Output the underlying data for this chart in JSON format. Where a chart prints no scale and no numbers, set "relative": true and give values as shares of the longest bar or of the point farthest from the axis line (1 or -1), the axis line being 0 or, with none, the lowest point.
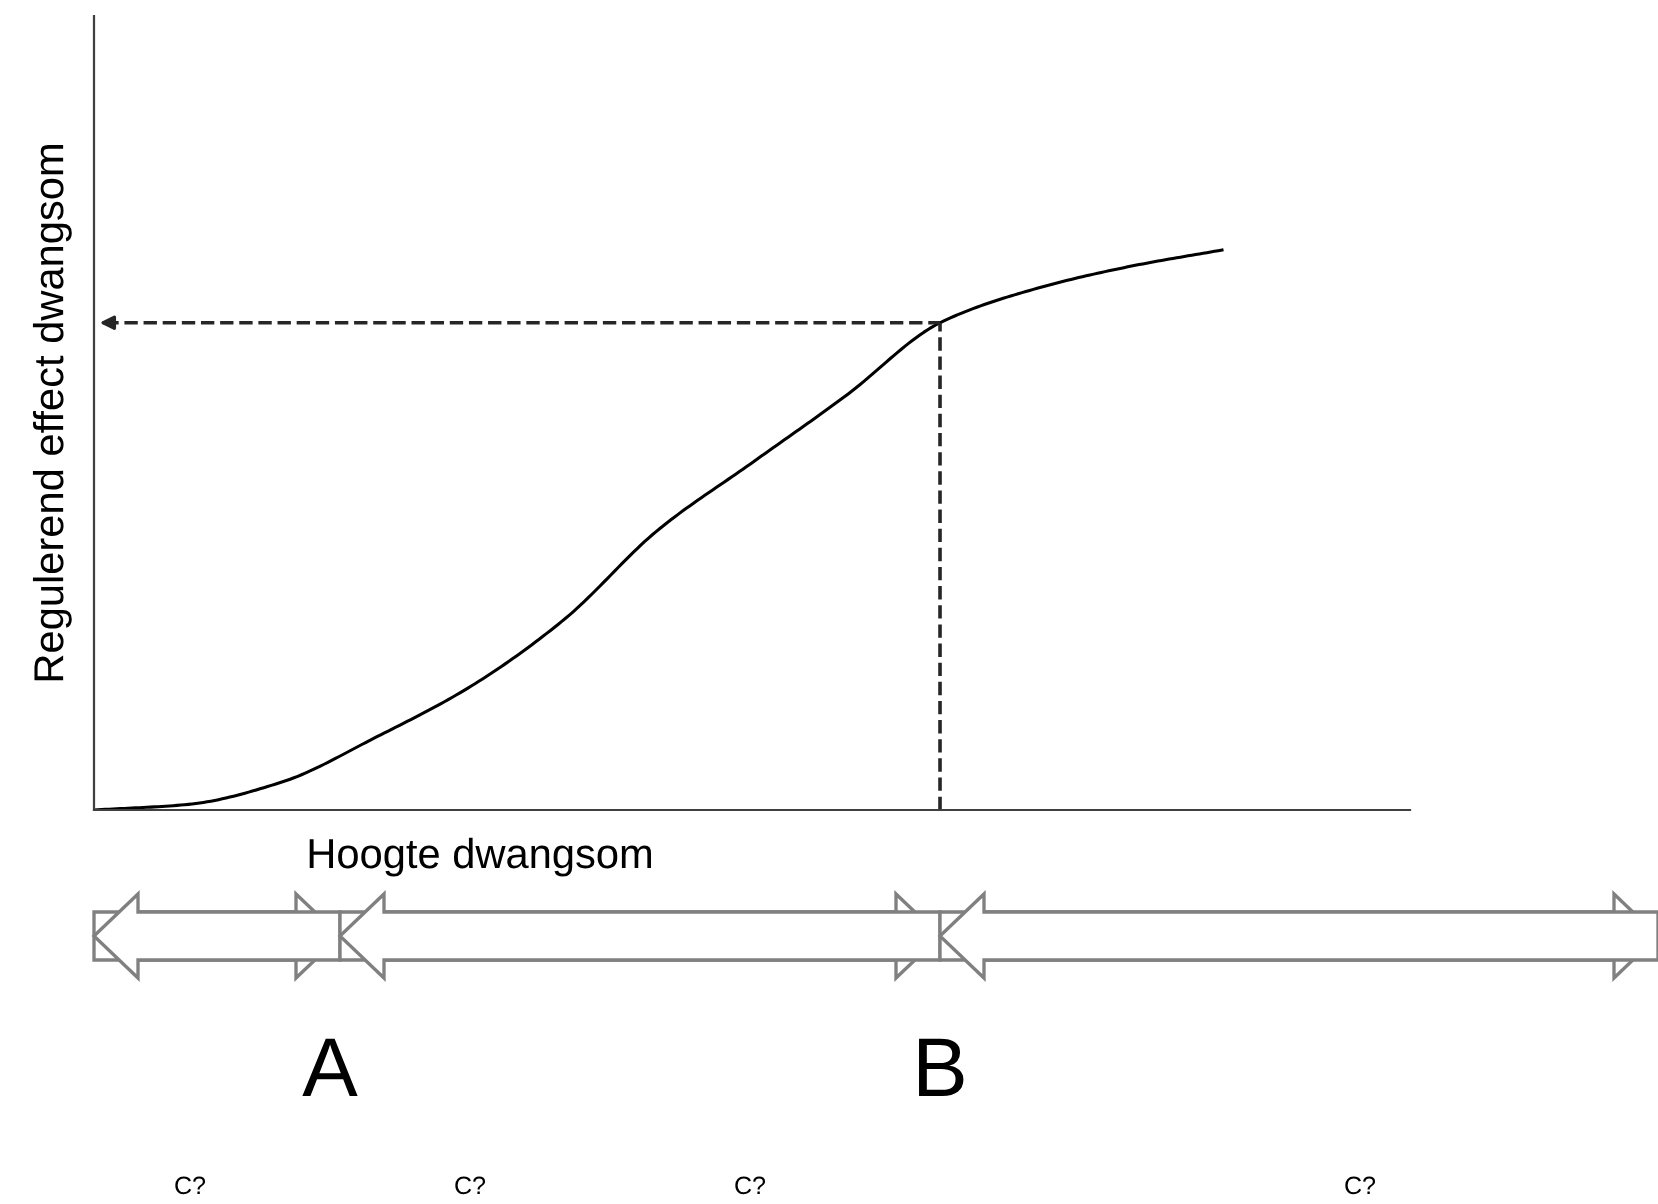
{
  "chart_data": {
    "type": "line",
    "relative": true,
    "xlabel": "Hoogte dwangsom",
    "ylabel": "Regulerend effect dwangsom",
    "categories": [
      null,
      null,
      null,
      null,
      null,
      null,
      null,
      null,
      null,
      null,
      null,
      null,
      null,
      null,
      null
    ],
    "series": [
      {
        "color": "#000000",
        "values": [
          0,
          0.01,
          0.05,
          0.13,
          0.22,
          0.34,
          0.5,
          0.62,
          0.74,
          0.87,
          0.93,
          0.97,
          1,
          null,
          null
        ]
      }
    ],
    "ref_lines": [
      {
        "axis": "y",
        "value": 0.87,
        "color": "#262626",
        "line_style": "dashed"
      }
    ],
    "annotations": [
      "A",
      "B",
      "C?",
      "C?",
      "C?",
      "C?"
    ],
    "marker": "none",
    "line_style": "solid"
  }
}
